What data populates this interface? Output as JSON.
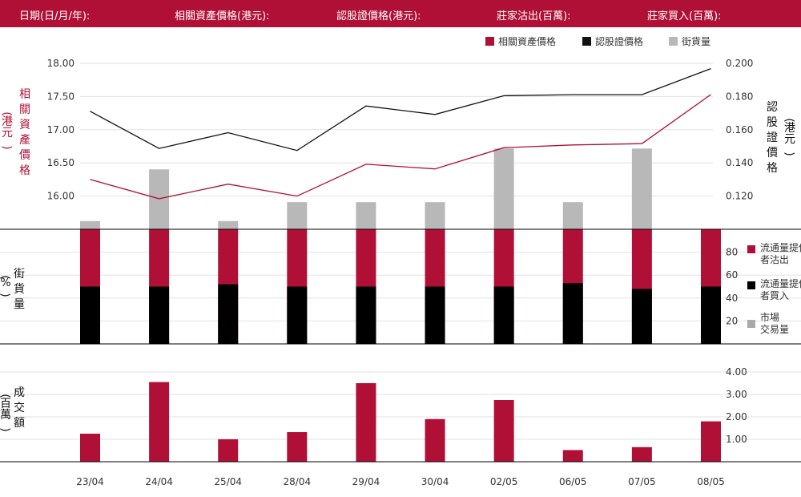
{
  "header": {
    "date_label": "日期(日/月/年):",
    "underlying_label": "相關資產價格(港元):",
    "warrant_label": "認股證價格(港元):",
    "mm_sell_label": "莊家沽出(百萬):",
    "mm_buy_label": "莊家買入(百萬):"
  },
  "legend": {
    "underlying": "相關資產價格",
    "warrant": "認股證價格",
    "outstanding": "街貨量"
  },
  "panel2_legend": {
    "mm_sell": "流通量提供者沽出",
    "mm_buy": "流通量提供者買入",
    "market": "市場交易量"
  },
  "axis_titles": {
    "left1": "相關資產價格",
    "left1_unit": "港元",
    "right1": "認股證價格",
    "right1_unit": "港元",
    "left2": "街貨量",
    "left2_unit": "%",
    "left3": "成交額",
    "left3_unit": "百萬"
  },
  "colors": {
    "header_bg": "#b01036",
    "underlying": "#b01036",
    "warrant": "#111111",
    "outstanding": "#b8b8b8",
    "mm_sell": "#b01036",
    "mm_buy": "#000000",
    "market": "#aaaaaa",
    "turnover": "#b01036"
  },
  "chart_data": [
    {
      "type": "line",
      "panel": "price",
      "categories": [
        "23/04",
        "24/04",
        "25/04",
        "28/04",
        "29/04",
        "30/04",
        "02/05",
        "06/05",
        "07/05",
        "08/05"
      ],
      "series": [
        {
          "name": "相關資產價格",
          "axis": "left",
          "values": [
            16.25,
            15.96,
            16.18,
            16.0,
            16.48,
            16.41,
            16.73,
            16.77,
            16.79,
            17.53
          ]
        },
        {
          "name": "認股證價格",
          "axis": "right",
          "values": [
            0.1711,
            0.1487,
            0.1582,
            0.1475,
            0.1743,
            0.1692,
            0.1805,
            0.1811,
            0.1811,
            0.1968
          ]
        },
        {
          "name": "街貨量",
          "type": "bar",
          "values": [
            1.3,
            9.5,
            1.3,
            4.3,
            4.3,
            4.3,
            12.8,
            4.3,
            12.8,
            0
          ]
        }
      ],
      "ylim_left": [
        15.5,
        18.0
      ],
      "yticks_left": [
        "18.00",
        "17.50",
        "17.00",
        "16.50",
        "16.00"
      ],
      "ylim_right": [
        0.1,
        0.2
      ],
      "yticks_right": [
        "0.200",
        "0.180",
        "0.160",
        "0.140",
        "0.120"
      ]
    },
    {
      "type": "bar",
      "panel": "percent",
      "categories": [
        "23/04",
        "24/04",
        "25/04",
        "28/04",
        "29/04",
        "30/04",
        "02/05",
        "06/05",
        "07/05",
        "08/05"
      ],
      "series": [
        {
          "name": "流通量提供者沽出",
          "values": [
            100,
            100,
            100,
            100,
            100,
            100,
            100,
            100,
            100,
            100
          ]
        },
        {
          "name": "流通量提供者買入",
          "values": [
            50,
            50,
            52,
            50,
            50,
            50,
            50,
            53,
            48,
            50
          ]
        }
      ],
      "ylim": [
        0,
        100
      ],
      "yticks": [
        "80",
        "60",
        "40",
        "20"
      ]
    },
    {
      "type": "bar",
      "panel": "turnover",
      "categories": [
        "23/04",
        "24/04",
        "25/04",
        "28/04",
        "29/04",
        "30/04",
        "02/05",
        "06/05",
        "07/05",
        "08/05"
      ],
      "series": [
        {
          "name": "成交額",
          "values": [
            1.25,
            3.55,
            1.0,
            1.32,
            3.5,
            1.9,
            2.75,
            0.52,
            0.65,
            1.8
          ]
        }
      ],
      "ylim": [
        0,
        4.0
      ],
      "yticks": [
        "4.00",
        "3.00",
        "2.00",
        "1.00"
      ]
    }
  ]
}
